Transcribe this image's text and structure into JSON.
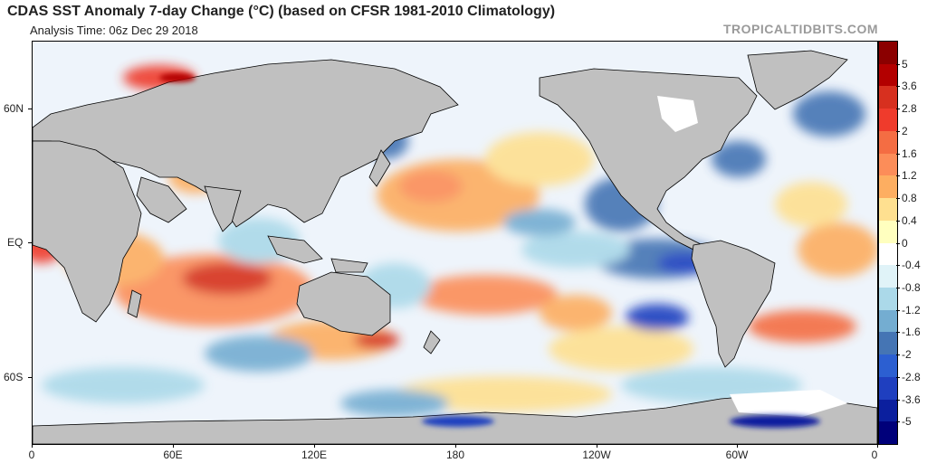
{
  "header": {
    "title": "CDAS SST Anomaly 7-day Change (°C) (based on CFSR 1981-2010 Climatology)",
    "analysis_time": "Analysis Time: 06z Dec 29 2018",
    "credit": "TROPICALTIDBITS.COM"
  },
  "map": {
    "projection": "cylindrical equidistant, 0° to 360°E",
    "land_color": "#c0c0c0",
    "no_data_color": "#ffffff",
    "lat_labels": [
      "60N",
      "EQ",
      "60S"
    ],
    "lon_labels": [
      "0",
      "60E",
      "120E",
      "180",
      "120W",
      "60W",
      "0"
    ]
  },
  "colorbar": {
    "labels": [
      "5",
      "3.6",
      "2.8",
      "2",
      "1.6",
      "1.2",
      "0.8",
      "0.4",
      "0",
      "-0.4",
      "-0.8",
      "-1.2",
      "-1.6",
      "-2",
      "-2.8",
      "-3.6",
      "-5"
    ],
    "colors": [
      "#8b0000",
      "#b30000",
      "#d7301f",
      "#ef3b2c",
      "#f46d43",
      "#fc8d59",
      "#fdae61",
      "#fee090",
      "#ffffbf",
      "#ffffff",
      "#e0f3f8",
      "#abd9e9",
      "#74add1",
      "#4575b4",
      "#2c5fd1",
      "#1f3fbf",
      "#0b1f9e",
      "#00007a"
    ]
  }
}
